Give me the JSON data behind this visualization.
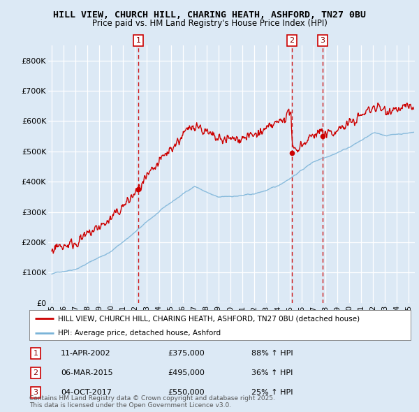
{
  "title": "HILL VIEW, CHURCH HILL, CHARING HEATH, ASHFORD, TN27 0BU",
  "subtitle": "Price paid vs. HM Land Registry's House Price Index (HPI)",
  "background_color": "#dce9f5",
  "transactions": [
    {
      "num": 1,
      "date": "11-APR-2002",
      "price": 375000,
      "hpi_change": "88% ↑ HPI",
      "year": 2002.28
    },
    {
      "num": 2,
      "date": "06-MAR-2015",
      "price": 495000,
      "hpi_change": "36% ↑ HPI",
      "year": 2015.17
    },
    {
      "num": 3,
      "date": "04-OCT-2017",
      "price": 550000,
      "hpi_change": "25% ↑ HPI",
      "year": 2017.75
    }
  ],
  "legend_property_label": "HILL VIEW, CHURCH HILL, CHARING HEATH, ASHFORD, TN27 0BU (detached house)",
  "legend_hpi_label": "HPI: Average price, detached house, Ashford",
  "property_line_color": "#cc0000",
  "hpi_line_color": "#7ab3d8",
  "vline_color": "#cc0000",
  "footer": "Contains HM Land Registry data © Crown copyright and database right 2025.\nThis data is licensed under the Open Government Licence v3.0.",
  "ylim": [
    0,
    850000
  ],
  "xlim_start": 1994.7,
  "xlim_end": 2025.5,
  "yticks": [
    0,
    100000,
    200000,
    300000,
    400000,
    500000,
    600000,
    700000,
    800000
  ],
  "ytick_labels": [
    "£0",
    "£100K",
    "£200K",
    "£300K",
    "£400K",
    "£500K",
    "£600K",
    "£700K",
    "£800K"
  ],
  "xtick_years": [
    1995,
    1996,
    1997,
    1998,
    1999,
    2000,
    2001,
    2002,
    2003,
    2004,
    2005,
    2006,
    2007,
    2008,
    2009,
    2010,
    2011,
    2012,
    2013,
    2014,
    2015,
    2016,
    2017,
    2018,
    2019,
    2020,
    2021,
    2022,
    2023,
    2024,
    2025
  ],
  "xtick_labels": [
    "95",
    "96",
    "97",
    "98",
    "99",
    "00",
    "01",
    "02",
    "03",
    "04",
    "05",
    "06",
    "07",
    "08",
    "09",
    "10",
    "11",
    "12",
    "13",
    "14",
    "15",
    "16",
    "17",
    "18",
    "19",
    "20",
    "21",
    "22",
    "23",
    "24",
    "25"
  ]
}
